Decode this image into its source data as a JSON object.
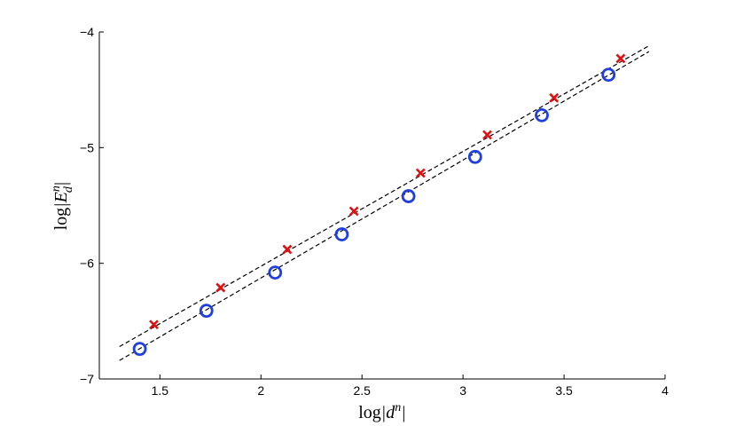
{
  "chart_data": {
    "type": "scatter",
    "title": "",
    "xlabel": "log|d^n|",
    "ylabel": "log|E_d^n|",
    "xlim": [
      1.2,
      4.0
    ],
    "ylim": [
      -7,
      -4
    ],
    "xticks": [
      1.5,
      2,
      2.5,
      3,
      3.5,
      4
    ],
    "yticks": [
      -7,
      -6,
      -5,
      -4
    ],
    "xtick_labels": [
      "1.5",
      "2",
      "2.5",
      "3",
      "3.5",
      "4"
    ],
    "ytick_labels": [
      "−7",
      "−6",
      "−5",
      "−4"
    ],
    "grid": false,
    "legend": "none",
    "series": [
      {
        "marker": "circle",
        "color": "#1f3fe0",
        "x": [
          1.4,
          1.73,
          2.07,
          2.4,
          2.73,
          3.06,
          3.39,
          3.72
        ],
        "y": [
          -6.74,
          -6.41,
          -6.08,
          -5.75,
          -5.42,
          -5.08,
          -4.72,
          -4.37
        ]
      },
      {
        "marker": "x",
        "color": "#e01010",
        "x": [
          1.47,
          1.8,
          2.13,
          2.46,
          2.79,
          3.12,
          3.45,
          3.78
        ],
        "y": [
          -6.53,
          -6.21,
          -5.88,
          -5.55,
          -5.22,
          -4.89,
          -4.57,
          -4.23
        ]
      }
    ],
    "reference_lines": [
      {
        "style": "dashed",
        "color": "#000000",
        "x": [
          1.3,
          3.92
        ],
        "y": [
          -6.72,
          -4.12
        ]
      },
      {
        "style": "dashed",
        "color": "#000000",
        "x": [
          1.3,
          3.92
        ],
        "y": [
          -6.84,
          -4.17
        ]
      }
    ]
  }
}
